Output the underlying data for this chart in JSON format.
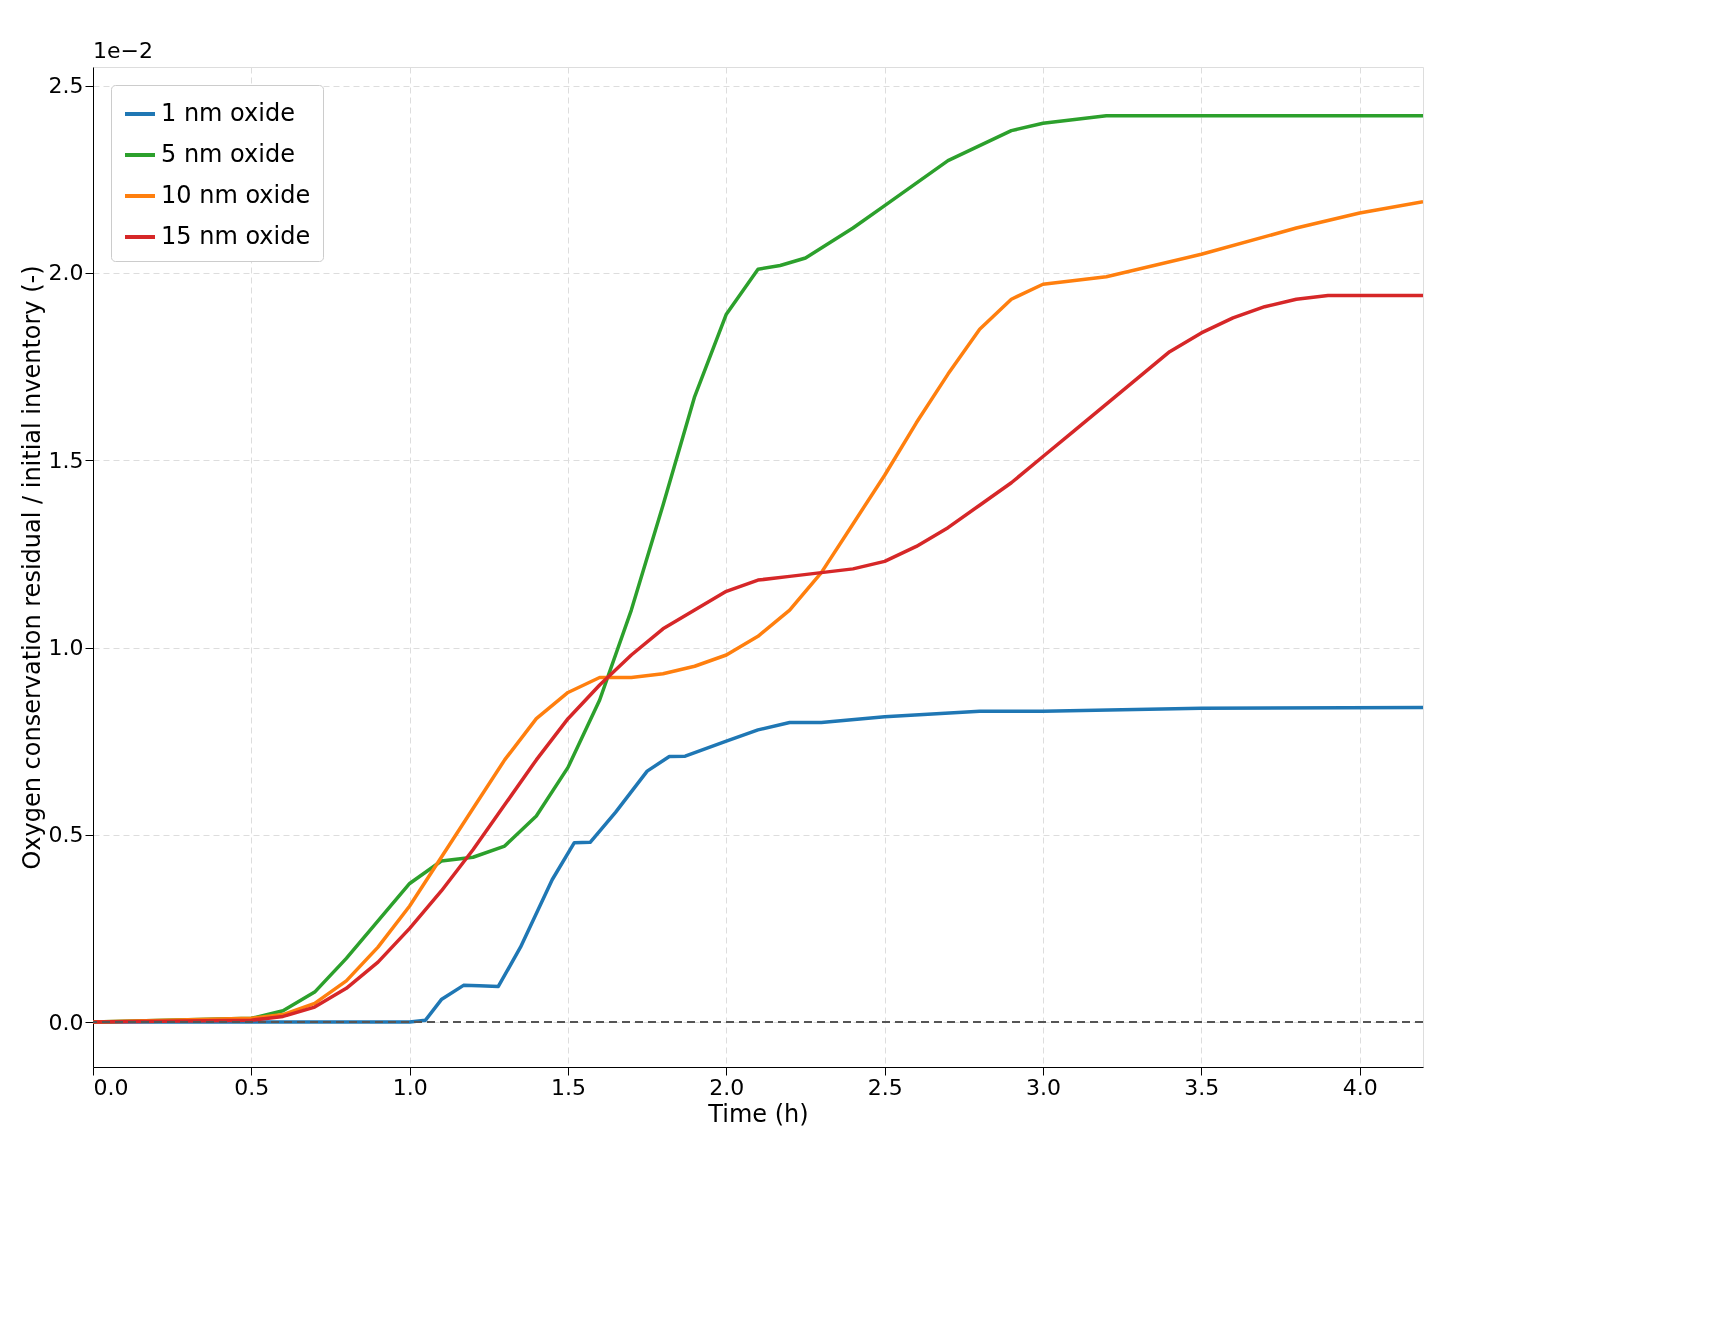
{
  "chart_data": {
    "type": "line",
    "xlabel": "Time (h)",
    "ylabel": "Oxygen conservation residual / initial inventory (-)",
    "annotations": [
      "1e−2"
    ],
    "xlim": [
      0,
      4.2
    ],
    "xticks": [
      {
        "value": 0,
        "label": "0.0"
      },
      {
        "value": 0.5,
        "label": "0.5"
      },
      {
        "value": 1,
        "label": "1.0"
      },
      {
        "value": 1.5,
        "label": "1.5"
      },
      {
        "value": 2,
        "label": "2.0"
      },
      {
        "value": 2.5,
        "label": "2.5"
      },
      {
        "value": 3,
        "label": "3.0"
      },
      {
        "value": 3.5,
        "label": "3.5"
      },
      {
        "value": 4,
        "label": "4.0"
      }
    ],
    "ylim": [
      -0.12,
      2.55
    ],
    "yticks": [
      {
        "value": 0,
        "label": "0.0"
      },
      0.5,
      {
        "value": 1,
        "label": "1.0"
      },
      1.5,
      {
        "value": 2,
        "label": "2.0"
      },
      2.5
    ],
    "grid": true,
    "legend": "top left",
    "line_style": "solid",
    "marker": "none",
    "ref_lines": [
      {
        "axis": "y",
        "value": 0,
        "label": null,
        "color": "#555555",
        "line_style": "dashed"
      }
    ],
    "series": [
      {
        "name": "1 nm oxide",
        "color": "#1f77b4",
        "x": [
          0,
          0.5,
          1.0,
          1.05,
          1.1,
          1.17,
          1.22,
          1.28,
          1.35,
          1.45,
          1.52,
          1.57,
          1.65,
          1.75,
          1.82,
          1.87,
          2.0,
          2.1,
          2.2,
          2.3,
          2.5,
          2.8,
          3.0,
          3.5,
          4.2
        ],
        "values": [
          0,
          0,
          0,
          0.005,
          0.06,
          0.098,
          0.097,
          0.095,
          0.2,
          0.38,
          0.479,
          0.48,
          0.56,
          0.67,
          0.709,
          0.71,
          0.75,
          0.78,
          0.8,
          0.8,
          0.815,
          0.83,
          0.83,
          0.838,
          0.84
        ]
      },
      {
        "name": "5 nm oxide",
        "color": "#2ca02c",
        "x": [
          0,
          0.5,
          0.6,
          0.7,
          0.8,
          0.9,
          1.0,
          1.1,
          1.2,
          1.3,
          1.4,
          1.5,
          1.6,
          1.7,
          1.8,
          1.9,
          2.0,
          2.1,
          2.17,
          2.25,
          2.4,
          2.5,
          2.7,
          2.9,
          3.0,
          3.2,
          4.2
        ],
        "values": [
          0,
          0.01,
          0.03,
          0.08,
          0.17,
          0.27,
          0.37,
          0.43,
          0.44,
          0.47,
          0.55,
          0.68,
          0.86,
          1.1,
          1.38,
          1.67,
          1.89,
          2.01,
          2.02,
          2.04,
          2.12,
          2.18,
          2.3,
          2.38,
          2.4,
          2.42,
          2.42
        ]
      },
      {
        "name": "10 nm oxide",
        "color": "#ff7f0e",
        "x": [
          0,
          0.5,
          0.6,
          0.7,
          0.8,
          0.9,
          1.0,
          1.1,
          1.2,
          1.3,
          1.4,
          1.5,
          1.6,
          1.7,
          1.8,
          1.9,
          2.0,
          2.1,
          2.2,
          2.3,
          2.4,
          2.5,
          2.6,
          2.7,
          2.8,
          2.9,
          3.0,
          3.1,
          3.2,
          3.5,
          3.8,
          4.0,
          4.2
        ],
        "values": [
          0,
          0.01,
          0.02,
          0.05,
          0.11,
          0.2,
          0.31,
          0.44,
          0.57,
          0.7,
          0.81,
          0.88,
          0.92,
          0.92,
          0.93,
          0.95,
          0.98,
          1.03,
          1.1,
          1.2,
          1.33,
          1.46,
          1.6,
          1.73,
          1.85,
          1.93,
          1.97,
          1.98,
          1.99,
          2.05,
          2.12,
          2.16,
          2.19
        ]
      },
      {
        "name": "15 nm oxide",
        "color": "#d62728",
        "x": [
          0,
          0.5,
          0.6,
          0.7,
          0.8,
          0.9,
          1.0,
          1.1,
          1.2,
          1.3,
          1.4,
          1.5,
          1.6,
          1.7,
          1.8,
          1.9,
          2.0,
          2.1,
          2.2,
          2.3,
          2.4,
          2.5,
          2.6,
          2.7,
          2.8,
          2.9,
          3.0,
          3.1,
          3.2,
          3.3,
          3.4,
          3.5,
          3.6,
          3.7,
          3.8,
          3.9,
          4.2
        ],
        "values": [
          0,
          0.005,
          0.015,
          0.04,
          0.09,
          0.16,
          0.25,
          0.35,
          0.46,
          0.58,
          0.7,
          0.81,
          0.9,
          0.98,
          1.05,
          1.1,
          1.15,
          1.18,
          1.19,
          1.2,
          1.21,
          1.23,
          1.27,
          1.32,
          1.38,
          1.44,
          1.51,
          1.58,
          1.65,
          1.72,
          1.79,
          1.84,
          1.88,
          1.91,
          1.93,
          1.94,
          1.94
        ]
      }
    ]
  }
}
